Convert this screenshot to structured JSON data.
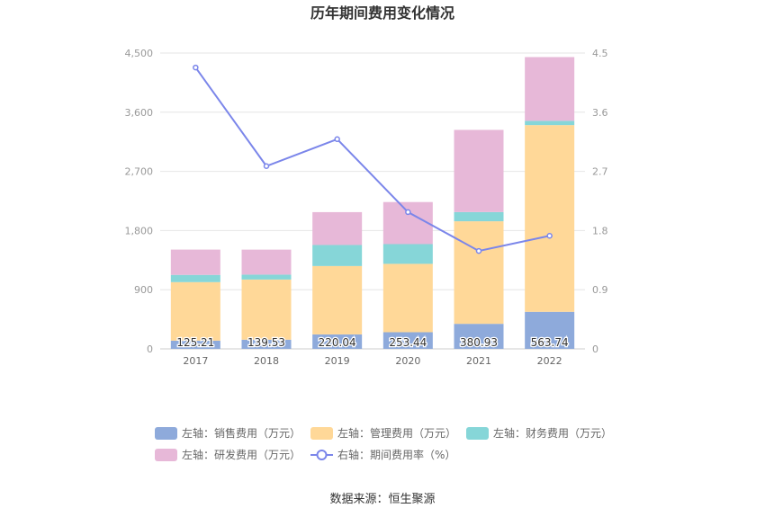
{
  "chart_data": {
    "type": "bar",
    "title": "历年期间费用变化情况",
    "categories": [
      "2017",
      "2018",
      "2019",
      "2020",
      "2021",
      "2022"
    ],
    "series": [
      {
        "name": "左轴：销售费用（万元）",
        "axis": "left",
        "stack": "cost",
        "color": "#8eaadb",
        "values": [
          125.21,
          139.53,
          220.04,
          253.44,
          380.93,
          563.74
        ],
        "labels": [
          "125.21",
          "139.53",
          "220.04",
          "253.44",
          "380.93",
          "563.74"
        ]
      },
      {
        "name": "左轴：管理费用（万元）",
        "axis": "left",
        "stack": "cost",
        "color": "#ffd898",
        "values": [
          890,
          915,
          1040,
          1040,
          1560,
          2840
        ]
      },
      {
        "name": "左轴：财务费用（万元）",
        "axis": "left",
        "stack": "cost",
        "color": "#86d6d8",
        "values": [
          110,
          75,
          320,
          300,
          140,
          65
        ]
      },
      {
        "name": "左轴：研发费用（万元）",
        "axis": "left",
        "stack": "cost",
        "color": "#e7b8d8",
        "values": [
          385,
          380,
          500,
          640,
          1250,
          970
        ]
      },
      {
        "name": "右轴：期间费用率（%）",
        "axis": "right",
        "type": "line",
        "color": "#7b86ea",
        "values": [
          4.28,
          2.78,
          3.19,
          2.08,
          1.49,
          1.72
        ]
      }
    ],
    "left_axis": {
      "min": 0,
      "max": 4500,
      "ticks": [
        "0",
        "900",
        "1,800",
        "2,700",
        "3,600",
        "4,500"
      ]
    },
    "right_axis": {
      "min": 0,
      "max": 4.5,
      "ticks": [
        "0",
        "0.9",
        "1.8",
        "2.7",
        "3.6",
        "4.5"
      ]
    },
    "grid": true,
    "legend_position": "bottom"
  },
  "source": "数据来源：恒生聚源"
}
